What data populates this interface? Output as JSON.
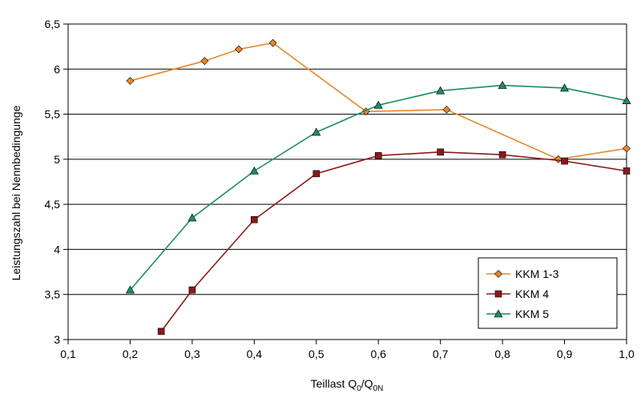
{
  "chart_data": {
    "type": "line",
    "title": "",
    "xlabel": "Teillast Q",
    "xlabel_sub1": "0",
    "xlabel_mid": "/Q",
    "xlabel_sub2": "0N",
    "ylabel": "Leistungszahl bei Nennbedingunge",
    "xlim": [
      0.1,
      1.0
    ],
    "ylim": [
      3,
      6.5
    ],
    "x_ticks": [
      0.1,
      0.2,
      0.3,
      0.4,
      0.5,
      0.6,
      0.7,
      0.8,
      0.9,
      1.0
    ],
    "x_tick_labels": [
      "0,1",
      "0,2",
      "0,3",
      "0,4",
      "0,5",
      "0,6",
      "0,7",
      "0,8",
      "0,9",
      "1,0"
    ],
    "y_ticks": [
      3,
      3.5,
      4,
      4.5,
      5,
      5.5,
      6,
      6.5
    ],
    "y_tick_labels": [
      "3",
      "3,5",
      "4",
      "4,5",
      "5",
      "5,5",
      "6",
      "6,5"
    ],
    "grid": "horizontal",
    "legend_position": "bottom-right",
    "series": [
      {
        "name": "KKM 1-3",
        "color": "#E8872A",
        "marker": "diamond",
        "x": [
          0.2,
          0.32,
          0.375,
          0.43,
          0.58,
          0.71,
          0.89,
          1.0
        ],
        "y": [
          5.87,
          6.09,
          6.22,
          6.29,
          5.53,
          5.55,
          5.0,
          5.12
        ]
      },
      {
        "name": "KKM 4",
        "color": "#8B1A1A",
        "marker": "square",
        "x": [
          0.25,
          0.3,
          0.4,
          0.5,
          0.6,
          0.7,
          0.8,
          0.9,
          1.0
        ],
        "y": [
          3.09,
          3.55,
          4.33,
          4.84,
          5.04,
          5.08,
          5.05,
          4.98,
          4.87
        ]
      },
      {
        "name": "KKM 5",
        "color": "#1E8A6A",
        "marker": "triangle",
        "x": [
          0.2,
          0.3,
          0.4,
          0.5,
          0.6,
          0.7,
          0.8,
          0.9,
          1.0
        ],
        "y": [
          3.55,
          4.35,
          4.87,
          5.3,
          5.6,
          5.76,
          5.82,
          5.79,
          5.65
        ]
      }
    ]
  }
}
